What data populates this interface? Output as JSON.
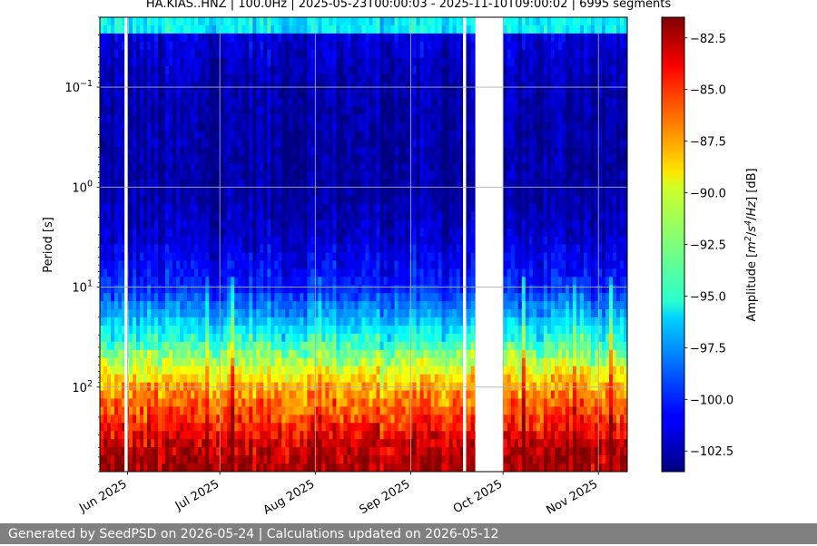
{
  "chart_data": {
    "type": "heatmap",
    "title": "HA.KIAS..HNZ | 100.0Hz | 2025-05-23T00:00:03 - 2025-11-10T09:00:02 | 6995 segments",
    "x_range": [
      "2025-05-23T00:00:03",
      "2025-11-10T09:00:02"
    ],
    "x_ticks": [
      {
        "date": "2025-06-01",
        "label": "Jun 2025"
      },
      {
        "date": "2025-07-01",
        "label": "Jul 2025"
      },
      {
        "date": "2025-08-01",
        "label": "Aug 2025"
      },
      {
        "date": "2025-09-01",
        "label": "Sep 2025"
      },
      {
        "date": "2025-10-01",
        "label": "Oct 2025"
      },
      {
        "date": "2025-11-01",
        "label": "Nov 2025"
      }
    ],
    "ylabel": "Period [s]",
    "y_scale": "log",
    "y_inverted": true,
    "ylim": [
      0.02,
      700
    ],
    "y_ticks": [
      {
        "value": 0.1,
        "base": "10",
        "exp": "−1"
      },
      {
        "value": 1,
        "base": "10",
        "exp": "0"
      },
      {
        "value": 10,
        "base": "10",
        "exp": "1"
      },
      {
        "value": 100,
        "base": "10",
        "exp": "2"
      }
    ],
    "grid": true,
    "data_gaps": [
      {
        "start": "2025-05-31",
        "end": "2025-06-01"
      },
      {
        "start": "2025-09-18",
        "end": "2025-09-19"
      },
      {
        "start": "2025-09-22",
        "end": "2025-10-01"
      }
    ],
    "colorbar": {
      "label_parts": [
        "Amplitude [",
        "m",
        "2",
        "/",
        "s",
        "4",
        "/",
        "Hz",
        "] [dB]"
      ],
      "range": [
        -103.5,
        -81.5
      ],
      "ticks": [
        {
          "value": -82.5,
          "label": "−82.5"
        },
        {
          "value": -85.0,
          "label": "−85.0"
        },
        {
          "value": -87.5,
          "label": "−87.5"
        },
        {
          "value": -90.0,
          "label": "−90.0"
        },
        {
          "value": -92.5,
          "label": "−92.5"
        },
        {
          "value": -95.0,
          "label": "−95.0"
        },
        {
          "value": -97.5,
          "label": "−97.5"
        },
        {
          "value": -100.0,
          "label": "−100.0"
        },
        {
          "value": -102.5,
          "label": "−102.5"
        }
      ],
      "colormap": "jet"
    },
    "amplitude_profile": [
      {
        "period": 0.02,
        "db": -95.5
      },
      {
        "period": 0.03,
        "db": -95.5
      },
      {
        "period": 0.031,
        "db": -101.5
      },
      {
        "period": 0.1,
        "db": -102.5
      },
      {
        "period": 1,
        "db": -102.8
      },
      {
        "period": 3,
        "db": -102.0
      },
      {
        "period": 10,
        "db": -100.0
      },
      {
        "period": 20,
        "db": -97.0
      },
      {
        "period": 40,
        "db": -93.5
      },
      {
        "period": 70,
        "db": -90.0
      },
      {
        "period": 100,
        "db": -88.0
      },
      {
        "period": 200,
        "db": -85.5
      },
      {
        "period": 400,
        "db": -83.0
      },
      {
        "period": 700,
        "db": -82.0
      }
    ]
  },
  "footer": {
    "text": "Generated by SeedPSD on 2026-05-24 | Calculations updated on 2026-05-12"
  }
}
